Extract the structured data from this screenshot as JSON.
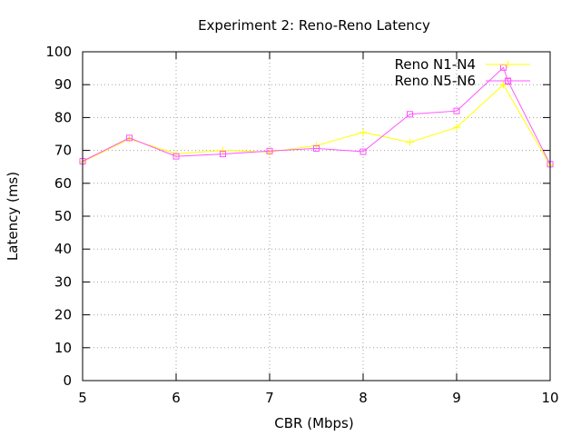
{
  "chart_data": {
    "type": "line",
    "title": "Experiment 2: Reno-Reno Latency",
    "xlabel": "CBR (Mbps)",
    "ylabel": "Latency (ms)",
    "xlim": [
      5,
      10
    ],
    "ylim": [
      0,
      100
    ],
    "xticks": [
      5,
      6,
      7,
      8,
      9,
      10
    ],
    "yticks": [
      0,
      10,
      20,
      30,
      40,
      50,
      60,
      70,
      80,
      90,
      100
    ],
    "grid": true,
    "legend_position": "top-right",
    "series": [
      {
        "name": "Reno N1-N4",
        "color": "#ffff00",
        "marker": "plus",
        "x": [
          5,
          5.5,
          6,
          6.5,
          7,
          7.5,
          8,
          8.5,
          9,
          9.5,
          10
        ],
        "y": [
          66.5,
          73.5,
          69,
          70,
          69.5,
          71.5,
          75.5,
          72.5,
          77,
          90,
          65.5
        ]
      },
      {
        "name": "Reno N5-N6",
        "color": "#ff55ff",
        "marker": "square",
        "x": [
          5,
          5.5,
          6,
          6.5,
          7,
          7.5,
          8,
          8.5,
          9,
          9.5,
          9.55,
          10
        ],
        "y": [
          66.7,
          73.8,
          68.2,
          68.9,
          69.8,
          70.6,
          69.6,
          81,
          82,
          95.2,
          91,
          65.8
        ]
      }
    ]
  }
}
